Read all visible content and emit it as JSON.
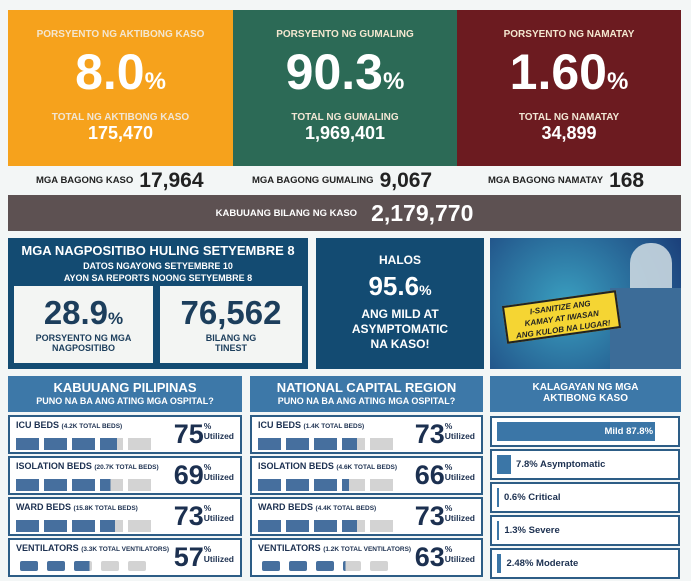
{
  "summary": [
    {
      "label": "PORSYENTO NG AKTIBONG KASO",
      "pct": "8.0",
      "total_label": "TOTAL NG AKTIBONG KASO",
      "total": "175,470",
      "new_label": "MGA BAGONG KASO",
      "new": "17,964",
      "color": "#f6a21c"
    },
    {
      "label": "PORSYENTO NG GUMALING",
      "pct": "90.3",
      "total_label": "TOTAL NG GUMALING",
      "total": "1,969,401",
      "new_label": "MGA BAGONG GUMALING",
      "new": "9,067",
      "color": "#2c6a56"
    },
    {
      "label": "PORSYENTO NG NAMATAY",
      "pct": "1.60",
      "total_label": "TOTAL NG NAMATAY",
      "total": "34,899",
      "new_label": "MGA BAGONG NAMATAY",
      "new": "168",
      "color": "#6c1b20"
    }
  ],
  "percent_sign": "%",
  "total_cases": {
    "label": "KABUUANG BILANG NG KASO",
    "value": "2,179,770"
  },
  "positivity": {
    "title": "MGA NAGPOSITIBO HULING SETYEMBRE 8",
    "line1": "DATOS NGAYONG SETYEMBRE 10",
    "line2": "AYON SA REPORTS NOONG SETYEMBRE 8",
    "rate": "28.9",
    "rate_label1": "PORSYENTO NG MGA",
    "rate_label2": "NAGPOSITIBO",
    "tested": "76,562",
    "tested_label1": "BILANG NG",
    "tested_label2": "TINEST"
  },
  "mild": {
    "halos": "HALOS",
    "pct": "95.6",
    "l1": "ANG MILD AT",
    "l2": "ASYMPTOMATIC",
    "l3": "NA KASO!"
  },
  "poster": {
    "l1": "I-SANITIZE ANG",
    "l2": "KAMAY AT IWASAN",
    "l3": "ANG KULOB NA LUGAR!"
  },
  "hospitals": [
    {
      "title": "KABUUANG PILIPINAS",
      "subtitle": "PUNO NA BA ANG ATING MGA OSPITAL?",
      "rows": [
        {
          "label": "ICU BEDS",
          "total": "(4.2K TOTAL BEDS)",
          "value": "75",
          "type": "bed"
        },
        {
          "label": "ISOLATION BEDS",
          "total": "(20.7K TOTAL BEDS)",
          "value": "69",
          "type": "bed"
        },
        {
          "label": "WARD BEDS",
          "total": "(15.8K TOTAL BEDS)",
          "value": "73",
          "type": "bed"
        },
        {
          "label": "VENTILATORS",
          "total": "(3.3K TOTAL VENTILATORS)",
          "value": "57",
          "type": "vent"
        }
      ]
    },
    {
      "title": "NATIONAL CAPITAL REGION",
      "subtitle": "PUNO NA BA ANG ATING MGA OSPITAL?",
      "rows": [
        {
          "label": "ICU BEDS",
          "total": "(1.4K TOTAL BEDS)",
          "value": "73",
          "type": "bed"
        },
        {
          "label": "ISOLATION BEDS",
          "total": "(4.6K TOTAL BEDS)",
          "value": "66",
          "type": "bed"
        },
        {
          "label": "WARD BEDS",
          "total": "(4.4K TOTAL BEDS)",
          "value": "73",
          "type": "bed"
        },
        {
          "label": "VENTILATORS",
          "total": "(1.2K TOTAL VENTILATORS)",
          "value": "63",
          "type": "vent"
        }
      ]
    }
  ],
  "utilized": "Utilized",
  "status": {
    "title1": "KALAGAYAN NG MGA",
    "title2": "AKTIBONG KASO",
    "items": [
      {
        "text": "Mild 87.8%",
        "value": 87.8
      },
      {
        "text": "7.8% Asymptomatic",
        "value": 7.8
      },
      {
        "text": "0.6% Critical",
        "value": 0.6
      },
      {
        "text": "1.3% Severe",
        "value": 1.3
      },
      {
        "text": "2.48% Moderate",
        "value": 2.48
      }
    ]
  },
  "colors": {
    "bar": "#466f9e",
    "empty": "#d3d3d3"
  }
}
